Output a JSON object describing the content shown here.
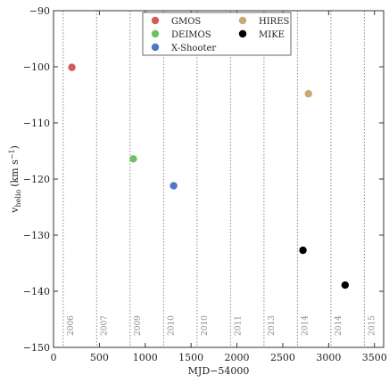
{
  "chart_data": {
    "type": "scatter",
    "xlabel": "MJD−54000",
    "ylabel": "v_helio (km s⁻¹)",
    "ylabel_main": "v",
    "ylabel_sub": "helio",
    "ylabel_units": "(km s",
    "ylabel_sup": "−1",
    "ylabel_close": ")",
    "xlim": [
      0,
      3600
    ],
    "ylim": [
      -150,
      -90
    ],
    "x_ticks": [
      0,
      500,
      1000,
      1500,
      2000,
      2500,
      3000,
      3500
    ],
    "x_tick_labels": [
      "0",
      "500",
      "1000",
      "1500",
      "2000",
      "2500",
      "3000",
      "3500"
    ],
    "y_ticks": [
      -150,
      -140,
      -130,
      -120,
      -110,
      -100,
      -90
    ],
    "y_tick_labels": [
      "−150",
      "−140",
      "−130",
      "−120",
      "−110",
      "−100",
      "−90"
    ],
    "grid": false,
    "legend_placement": "top-center",
    "series": [
      {
        "name": "GMOS",
        "color": "#d15a5a",
        "points": [
          {
            "x": 200,
            "y": -100.1
          }
        ]
      },
      {
        "name": "DEIMOS",
        "color": "#6cc263",
        "points": [
          {
            "x": 870,
            "y": -116.4
          }
        ]
      },
      {
        "name": "X-Shooter",
        "color": "#4a78c6",
        "points": [
          {
            "x": 1310,
            "y": -121.2
          }
        ]
      },
      {
        "name": "HIRES",
        "color": "#c9a96b",
        "points": [
          {
            "x": 2780,
            "y": -104.8
          }
        ]
      },
      {
        "name": "MIKE",
        "color": "#000000",
        "points": [
          {
            "x": 2720,
            "y": -132.7
          },
          {
            "x": 3180,
            "y": -138.9
          }
        ]
      }
    ],
    "year_markers": [
      {
        "x": 105,
        "label": "2006"
      },
      {
        "x": 470,
        "label": "2007"
      },
      {
        "x": 835,
        "label": "2009"
      },
      {
        "x": 1200,
        "label": "2010"
      },
      {
        "x": 1565,
        "label": "2010"
      },
      {
        "x": 1930,
        "label": "2011"
      },
      {
        "x": 2295,
        "label": "2013"
      },
      {
        "x": 2660,
        "label": "2014"
      },
      {
        "x": 3025,
        "label": "2014"
      },
      {
        "x": 3390,
        "label": "2015"
      }
    ]
  }
}
